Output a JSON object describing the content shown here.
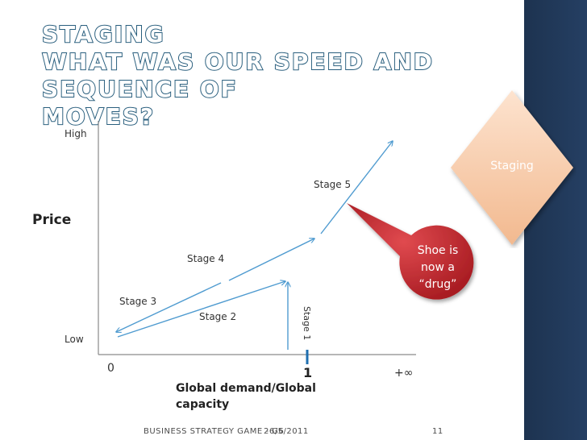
{
  "slide": {
    "title_lines": [
      "Staging",
      "What was our speed and sequence of",
      "moves?"
    ],
    "tag": "Staging",
    "callout_lines": [
      "Shoe is",
      "now a",
      "“drug”"
    ]
  },
  "diagram": {
    "y_axis_label": "Price",
    "y_high": "High",
    "y_low": "Low",
    "x_origin": "0",
    "x_one": "1",
    "x_inf": "+∞",
    "x_axis_label_lines": [
      "Global demand/Global",
      "capacity"
    ],
    "stages": [
      "Stage 1",
      "Stage 2",
      "Stage 3",
      "Stage 4",
      "Stage 5"
    ]
  },
  "footer": {
    "course": "BUSINESS STRATEGY GAME - G6",
    "date": "26/5/2011",
    "page": "11"
  },
  "colors": {
    "title_outline": "#2a5f7e",
    "arrow": "#4f9bd0",
    "marker": "#1f6fb0",
    "callout": "#c0282e",
    "tag_diamond": "#f6c9a8",
    "side_bar": "#1d3350"
  }
}
